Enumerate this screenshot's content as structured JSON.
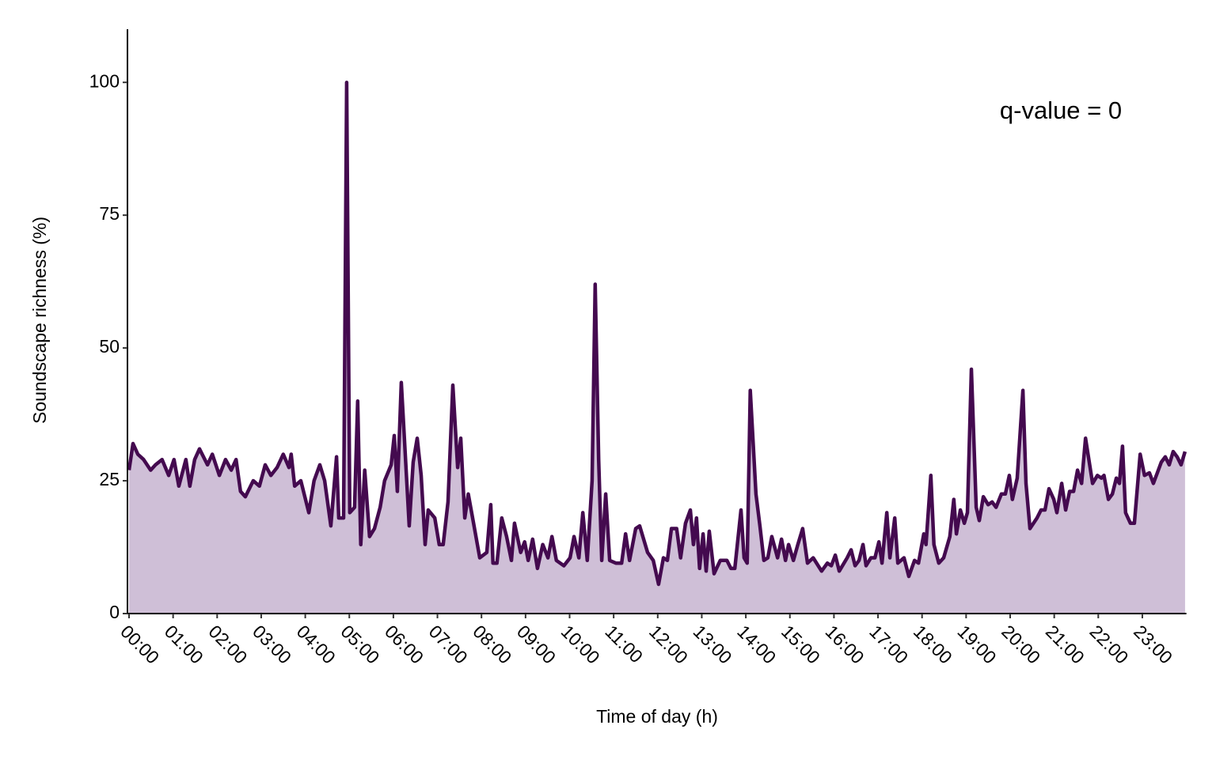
{
  "chart_data": {
    "type": "area",
    "annotation": "q-value = 0",
    "xlabel": "Time of day (h)",
    "ylabel": "Soundscape richness (%)",
    "xlim": [
      0,
      24
    ],
    "ylim": [
      0,
      110
    ],
    "yticks": [
      0,
      25,
      50,
      75,
      100
    ],
    "xticks": [
      {
        "value": 0,
        "label": "00:00"
      },
      {
        "value": 1,
        "label": "01:00"
      },
      {
        "value": 2,
        "label": "02:00"
      },
      {
        "value": 3,
        "label": "03:00"
      },
      {
        "value": 4,
        "label": "04:00"
      },
      {
        "value": 5,
        "label": "05:00"
      },
      {
        "value": 6,
        "label": "06:00"
      },
      {
        "value": 7,
        "label": "07:00"
      },
      {
        "value": 8,
        "label": "08:00"
      },
      {
        "value": 9,
        "label": "09:00"
      },
      {
        "value": 10,
        "label": "10:00"
      },
      {
        "value": 11,
        "label": "11:00"
      },
      {
        "value": 12,
        "label": "12:00"
      },
      {
        "value": 13,
        "label": "13:00"
      },
      {
        "value": 14,
        "label": "14:00"
      },
      {
        "value": 15,
        "label": "15:00"
      },
      {
        "value": 16,
        "label": "16:00"
      },
      {
        "value": 17,
        "label": "17:00"
      },
      {
        "value": 18,
        "label": "18:00"
      },
      {
        "value": 19,
        "label": "19:00"
      },
      {
        "value": 20,
        "label": "20:00"
      },
      {
        "value": 21,
        "label": "21:00"
      },
      {
        "value": 22,
        "label": "22:00"
      },
      {
        "value": 23,
        "label": "23:00"
      }
    ],
    "line_color": "#440a4f",
    "fill_color": "#cfbfd7",
    "x": [
      0,
      0.09,
      0.2,
      0.33,
      0.49,
      0.6,
      0.75,
      0.9,
      1.02,
      1.13,
      1.29,
      1.38,
      1.49,
      1.6,
      1.78,
      1.89,
      2.05,
      2.19,
      2.32,
      2.43,
      2.53,
      2.64,
      2.82,
      2.96,
      3.09,
      3.22,
      3.36,
      3.5,
      3.63,
      3.68,
      3.76,
      3.9,
      4.08,
      4.2,
      4.33,
      4.44,
      4.58,
      4.71,
      4.76,
      4.87,
      4.94,
      5.01,
      5.12,
      5.19,
      5.26,
      5.35,
      5.46,
      5.57,
      5.7,
      5.8,
      5.95,
      6.02,
      6.09,
      6.18,
      6.36,
      6.45,
      6.54,
      6.63,
      6.72,
      6.79,
      6.94,
      7.04,
      7.13,
      7.24,
      7.35,
      7.46,
      7.53,
      7.62,
      7.7,
      7.82,
      7.96,
      8.12,
      8.21,
      8.26,
      8.35,
      8.46,
      8.57,
      8.68,
      8.75,
      8.89,
      8.98,
      9.06,
      9.16,
      9.27,
      9.39,
      9.51,
      9.6,
      9.7,
      9.87,
      10.01,
      10.1,
      10.21,
      10.3,
      10.4,
      10.51,
      10.58,
      10.66,
      10.73,
      10.82,
      10.91,
      11.05,
      11.18,
      11.27,
      11.36,
      11.5,
      11.59,
      11.77,
      11.9,
      12.02,
      12.13,
      12.22,
      12.31,
      12.43,
      12.52,
      12.63,
      12.74,
      12.81,
      12.88,
      12.95,
      13.03,
      13.1,
      13.17,
      13.28,
      13.42,
      13.57,
      13.66,
      13.75,
      13.89,
      13.96,
      14.03,
      14.1,
      14.23,
      14.32,
      14.41,
      14.5,
      14.59,
      14.72,
      14.81,
      14.9,
      14.97,
      15.08,
      15.18,
      15.29,
      15.4,
      15.53,
      15.72,
      15.85,
      15.94,
      16.03,
      16.12,
      16.3,
      16.39,
      16.48,
      16.57,
      16.66,
      16.73,
      16.84,
      16.93,
      17.02,
      17.09,
      17.2,
      17.27,
      17.38,
      17.45,
      17.59,
      17.7,
      17.83,
      17.92,
      18.04,
      18.09,
      18.2,
      18.27,
      18.38,
      18.49,
      18.63,
      18.72,
      18.78,
      18.87,
      18.96,
      19.03,
      19.12,
      19.23,
      19.3,
      19.39,
      19.5,
      19.59,
      19.68,
      19.8,
      19.89,
      19.98,
      20.05,
      20.16,
      20.29,
      20.36,
      20.45,
      20.61,
      20.7,
      20.79,
      20.88,
      20.99,
      21.06,
      21.17,
      21.26,
      21.35,
      21.44,
      21.53,
      21.62,
      21.71,
      21.87,
      21.98,
      22.07,
      22.13,
      22.23,
      22.32,
      22.41,
      22.48,
      22.55,
      22.62,
      22.73,
      22.82,
      22.95,
      23.05,
      23.16,
      23.25,
      23.34,
      23.43,
      23.52,
      23.61,
      23.7,
      23.79,
      23.88,
      23.97
    ],
    "values": [
      27,
      32,
      30,
      29,
      27,
      28,
      29,
      26,
      29,
      24,
      29,
      24,
      29,
      31,
      28,
      30,
      26,
      29,
      27,
      29,
      23,
      22,
      25,
      24,
      28,
      26,
      27.5,
      30,
      27.5,
      30,
      24,
      25,
      19,
      25,
      28,
      25,
      16.5,
      29.5,
      18,
      18,
      100,
      19,
      20,
      40,
      13,
      27,
      14.5,
      16,
      20,
      25,
      28,
      33.5,
      23,
      43.5,
      16.5,
      28.5,
      33,
      26,
      13,
      19.5,
      18,
      13,
      13,
      21,
      43,
      27.5,
      33,
      18,
      22.5,
      17,
      10.5,
      11.5,
      20.5,
      9.5,
      9.5,
      18,
      14.5,
      10,
      17,
      11.5,
      13.5,
      10,
      14,
      8.5,
      13,
      10.5,
      14.5,
      10,
      9,
      10.5,
      14.5,
      10.5,
      19,
      10,
      25,
      62,
      29,
      10,
      22.5,
      10,
      9.5,
      9.5,
      15,
      10,
      16,
      16.5,
      11.5,
      10,
      5.5,
      10.5,
      10,
      16,
      16,
      10.5,
      17,
      19.5,
      13,
      18,
      8.5,
      15,
      8,
      15.5,
      7.5,
      10,
      10,
      8.5,
      8.5,
      19.5,
      10.5,
      9.5,
      42,
      22.5,
      16.5,
      10,
      10.5,
      14.5,
      10.5,
      14,
      10,
      13,
      10,
      13,
      16,
      9.5,
      10.5,
      8,
      9.5,
      9,
      11,
      8,
      10.5,
      12,
      9,
      10,
      13,
      9,
      10.5,
      10.5,
      13.5,
      9.5,
      19,
      10.5,
      18,
      9.5,
      10.5,
      7,
      10,
      9.5,
      15,
      13,
      26,
      13,
      9.5,
      10.5,
      14.5,
      21.5,
      15,
      19.5,
      17,
      19,
      46,
      20,
      17.5,
      22,
      20.5,
      21,
      20,
      22.5,
      22.5,
      26,
      21.5,
      25.5,
      42,
      24.5,
      16,
      18,
      19.5,
      19.5,
      23.5,
      21.5,
      19,
      24.5,
      19.5,
      23,
      23,
      27,
      24.5,
      33,
      24.5,
      26,
      25.5,
      26,
      21.5,
      22.5,
      25.5,
      24.5,
      31.5,
      19,
      17,
      17,
      30,
      26,
      26.5,
      24.5,
      26.5,
      28.5,
      29.5,
      28,
      30.5,
      29.5,
      28,
      30.5
    ]
  }
}
